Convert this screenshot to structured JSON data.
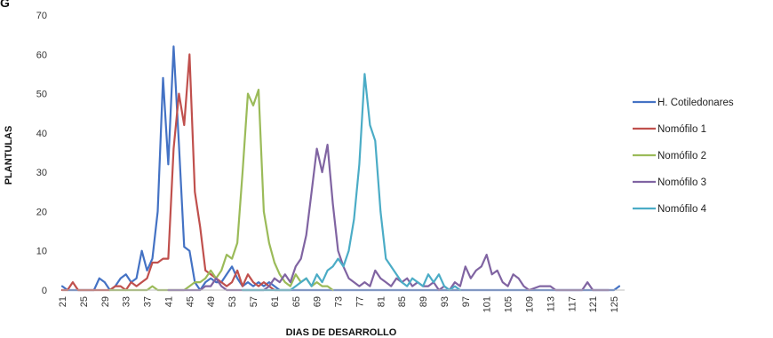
{
  "header_fragment": "G",
  "chart_data": {
    "type": "line",
    "title": "",
    "xlabel": "DIAS DE DESARROLLO",
    "ylabel": "PLANTULAS",
    "ylim": [
      0,
      70
    ],
    "yticks": [
      0,
      10,
      20,
      30,
      40,
      50,
      60,
      70
    ],
    "xlim": [
      21,
      127
    ],
    "xticks": [
      21,
      25,
      29,
      33,
      37,
      41,
      45,
      49,
      53,
      57,
      61,
      65,
      69,
      73,
      77,
      81,
      85,
      89,
      93,
      97,
      101,
      105,
      109,
      113,
      117,
      121,
      125
    ],
    "grid": false,
    "legend_position": "right",
    "series": [
      {
        "name": "H. Cotiledonares",
        "color": "#4472C4",
        "points": [
          [
            21,
            1
          ],
          [
            22,
            0
          ],
          [
            26,
            0
          ],
          [
            27,
            0
          ],
          [
            28,
            3
          ],
          [
            29,
            2
          ],
          [
            30,
            0
          ],
          [
            31,
            1
          ],
          [
            32,
            3
          ],
          [
            33,
            4
          ],
          [
            34,
            2
          ],
          [
            35,
            3
          ],
          [
            36,
            10
          ],
          [
            37,
            5
          ],
          [
            38,
            8
          ],
          [
            39,
            20
          ],
          [
            40,
            54
          ],
          [
            41,
            32
          ],
          [
            42,
            62
          ],
          [
            43,
            37
          ],
          [
            44,
            11
          ],
          [
            45,
            10
          ],
          [
            46,
            2
          ],
          [
            47,
            0
          ],
          [
            48,
            2
          ],
          [
            49,
            3
          ],
          [
            50,
            2
          ],
          [
            51,
            2
          ],
          [
            52,
            4
          ],
          [
            53,
            6
          ],
          [
            54,
            3
          ],
          [
            55,
            1
          ],
          [
            56,
            2
          ],
          [
            57,
            1
          ],
          [
            58,
            2
          ],
          [
            59,
            1
          ],
          [
            60,
            2
          ],
          [
            61,
            1
          ],
          [
            62,
            0
          ],
          [
            124,
            0
          ],
          [
            125,
            0
          ],
          [
            126,
            1
          ]
        ]
      },
      {
        "name": "Nomófilo 1",
        "color": "#C0504D",
        "points": [
          [
            21,
            0
          ],
          [
            22,
            0
          ],
          [
            23,
            2
          ],
          [
            24,
            0
          ],
          [
            30,
            0
          ],
          [
            31,
            1
          ],
          [
            32,
            1
          ],
          [
            33,
            0
          ],
          [
            34,
            2
          ],
          [
            35,
            1
          ],
          [
            36,
            2
          ],
          [
            37,
            3
          ],
          [
            38,
            7
          ],
          [
            39,
            7
          ],
          [
            40,
            8
          ],
          [
            41,
            8
          ],
          [
            42,
            36
          ],
          [
            43,
            50
          ],
          [
            44,
            42
          ],
          [
            45,
            60
          ],
          [
            46,
            25
          ],
          [
            47,
            16
          ],
          [
            48,
            5
          ],
          [
            49,
            4
          ],
          [
            50,
            3
          ],
          [
            51,
            2
          ],
          [
            52,
            1
          ],
          [
            53,
            2
          ],
          [
            54,
            5
          ],
          [
            55,
            1
          ],
          [
            56,
            4
          ],
          [
            57,
            2
          ],
          [
            58,
            1
          ],
          [
            59,
            2
          ],
          [
            60,
            1
          ],
          [
            61,
            0
          ],
          [
            62,
            0
          ]
        ]
      },
      {
        "name": "Nomófilo 2",
        "color": "#9BBB59",
        "points": [
          [
            30,
            0
          ],
          [
            37,
            0
          ],
          [
            38,
            1
          ],
          [
            39,
            0
          ],
          [
            44,
            0
          ],
          [
            45,
            1
          ],
          [
            46,
            2
          ],
          [
            47,
            2
          ],
          [
            48,
            3
          ],
          [
            49,
            5
          ],
          [
            50,
            3
          ],
          [
            51,
            5
          ],
          [
            52,
            9
          ],
          [
            53,
            8
          ],
          [
            54,
            12
          ],
          [
            55,
            30
          ],
          [
            56,
            50
          ],
          [
            57,
            47
          ],
          [
            58,
            51
          ],
          [
            59,
            20
          ],
          [
            60,
            12
          ],
          [
            61,
            7
          ],
          [
            62,
            4
          ],
          [
            63,
            2
          ],
          [
            64,
            1
          ],
          [
            65,
            4
          ],
          [
            66,
            2
          ],
          [
            67,
            3
          ],
          [
            68,
            1
          ],
          [
            69,
            2
          ],
          [
            70,
            1
          ],
          [
            71,
            1
          ],
          [
            72,
            0
          ]
        ]
      },
      {
        "name": "Nomófilo 3",
        "color": "#8064A2",
        "points": [
          [
            41,
            0
          ],
          [
            47,
            0
          ],
          [
            48,
            1
          ],
          [
            49,
            1
          ],
          [
            50,
            3
          ],
          [
            51,
            1
          ],
          [
            52,
            0
          ],
          [
            59,
            0
          ],
          [
            60,
            1
          ],
          [
            61,
            3
          ],
          [
            62,
            2
          ],
          [
            63,
            4
          ],
          [
            64,
            2
          ],
          [
            65,
            6
          ],
          [
            66,
            8
          ],
          [
            67,
            14
          ],
          [
            68,
            25
          ],
          [
            69,
            36
          ],
          [
            70,
            30
          ],
          [
            71,
            37
          ],
          [
            72,
            22
          ],
          [
            73,
            10
          ],
          [
            74,
            6
          ],
          [
            75,
            3
          ],
          [
            76,
            2
          ],
          [
            77,
            1
          ],
          [
            78,
            2
          ],
          [
            79,
            1
          ],
          [
            80,
            5
          ],
          [
            81,
            3
          ],
          [
            82,
            2
          ],
          [
            83,
            1
          ],
          [
            84,
            3
          ],
          [
            85,
            2
          ],
          [
            86,
            3
          ],
          [
            87,
            1
          ],
          [
            88,
            2
          ],
          [
            89,
            1
          ],
          [
            90,
            1
          ],
          [
            91,
            2
          ],
          [
            92,
            0
          ],
          [
            93,
            1
          ],
          [
            94,
            0
          ],
          [
            95,
            2
          ],
          [
            96,
            1
          ],
          [
            97,
            6
          ],
          [
            98,
            3
          ],
          [
            99,
            5
          ],
          [
            100,
            6
          ],
          [
            101,
            9
          ],
          [
            102,
            4
          ],
          [
            103,
            5
          ],
          [
            104,
            2
          ],
          [
            105,
            1
          ],
          [
            106,
            4
          ],
          [
            107,
            3
          ],
          [
            108,
            1
          ],
          [
            109,
            0
          ],
          [
            111,
            1
          ],
          [
            113,
            1
          ],
          [
            114,
            0
          ],
          [
            119,
            0
          ],
          [
            120,
            2
          ],
          [
            121,
            0
          ],
          [
            124,
            0
          ]
        ]
      },
      {
        "name": "Nomófilo 4",
        "color": "#4BACC6",
        "points": [
          [
            55,
            0
          ],
          [
            64,
            0
          ],
          [
            65,
            1
          ],
          [
            66,
            2
          ],
          [
            67,
            3
          ],
          [
            68,
            1
          ],
          [
            69,
            4
          ],
          [
            70,
            2
          ],
          [
            71,
            5
          ],
          [
            72,
            6
          ],
          [
            73,
            8
          ],
          [
            74,
            6
          ],
          [
            75,
            10
          ],
          [
            76,
            18
          ],
          [
            77,
            32
          ],
          [
            78,
            55
          ],
          [
            79,
            42
          ],
          [
            80,
            38
          ],
          [
            81,
            20
          ],
          [
            82,
            8
          ],
          [
            83,
            6
          ],
          [
            84,
            4
          ],
          [
            85,
            2
          ],
          [
            86,
            1
          ],
          [
            87,
            3
          ],
          [
            88,
            2
          ],
          [
            89,
            1
          ],
          [
            90,
            4
          ],
          [
            91,
            2
          ],
          [
            92,
            4
          ],
          [
            93,
            1
          ],
          [
            94,
            0
          ],
          [
            95,
            1
          ],
          [
            96,
            0
          ]
        ]
      }
    ]
  }
}
